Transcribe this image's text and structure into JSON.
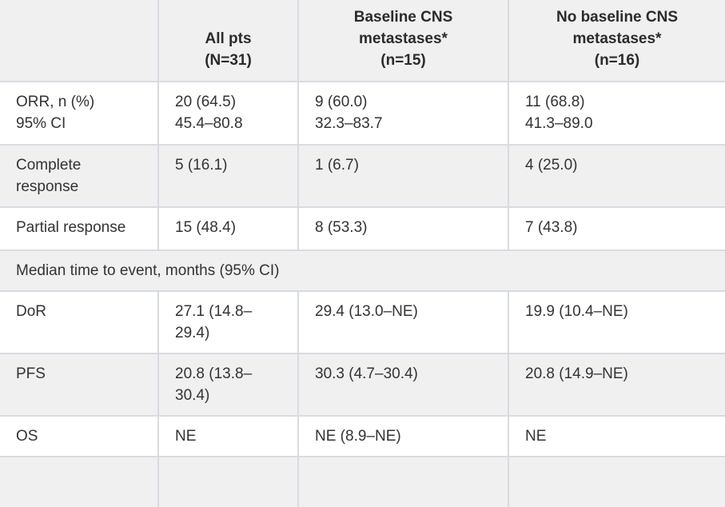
{
  "colors": {
    "stripe_background": "#f0f0f1",
    "border": "#d8dbe0",
    "text": "#333333"
  },
  "table": {
    "columns": [
      {
        "label": ""
      },
      {
        "label": "All pts\n(N=31)"
      },
      {
        "label": "Baseline CNS\nmetastases*\n(n=15)"
      },
      {
        "label": "No baseline CNS\nmetastases*\n(n=16)"
      }
    ],
    "rows": [
      {
        "label": "ORR, n (%)\n95% CI",
        "values": [
          "20 (64.5)\n45.4–80.8",
          "9 (60.0)\n32.3–83.7",
          "11 (68.8)\n41.3–89.0"
        ]
      },
      {
        "label": "Complete\nresponse",
        "values": [
          "5 (16.1)",
          "1 (6.7)",
          "4 (25.0)"
        ]
      },
      {
        "label": "Partial response",
        "values": [
          "15 (48.4)",
          "8 (53.3)",
          "7 (43.8)"
        ]
      },
      {
        "label": "DoR",
        "values": [
          "27.1 (14.8–\n29.4)",
          "29.4 (13.0–NE)",
          "19.9 (10.4–NE)"
        ]
      },
      {
        "label": "PFS",
        "values": [
          "20.8 (13.8–\n30.4)",
          "30.3 (4.7–30.4)",
          "20.8 (14.9–NE)"
        ]
      },
      {
        "label": "OS",
        "values": [
          "NE",
          "NE (8.9–NE)",
          "NE"
        ]
      }
    ],
    "section_header": "Median time to event, months (95% CI)"
  }
}
